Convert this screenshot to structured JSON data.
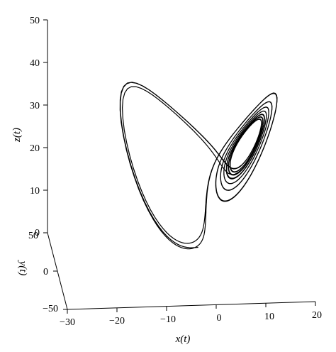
{
  "chart_data": {
    "type": "line",
    "subtype": "3d-phase-portrait",
    "title": "",
    "xlabel": "x(t)",
    "ylabel": "y(t)",
    "zlabel": "z(t)",
    "xlim": [
      -30,
      20
    ],
    "ylim": [
      -50,
      50
    ],
    "zlim": [
      0,
      50
    ],
    "x_ticks": [
      "−30",
      "−20",
      "−10",
      "0",
      "10",
      "20"
    ],
    "y_ticks": [
      "−50",
      "0",
      "50"
    ],
    "z_ticks": [
      "0",
      "10",
      "20",
      "30",
      "40",
      "50"
    ],
    "grid": false,
    "legend": "none",
    "series": [
      {
        "line_color": "#000000"
      }
    ]
  }
}
